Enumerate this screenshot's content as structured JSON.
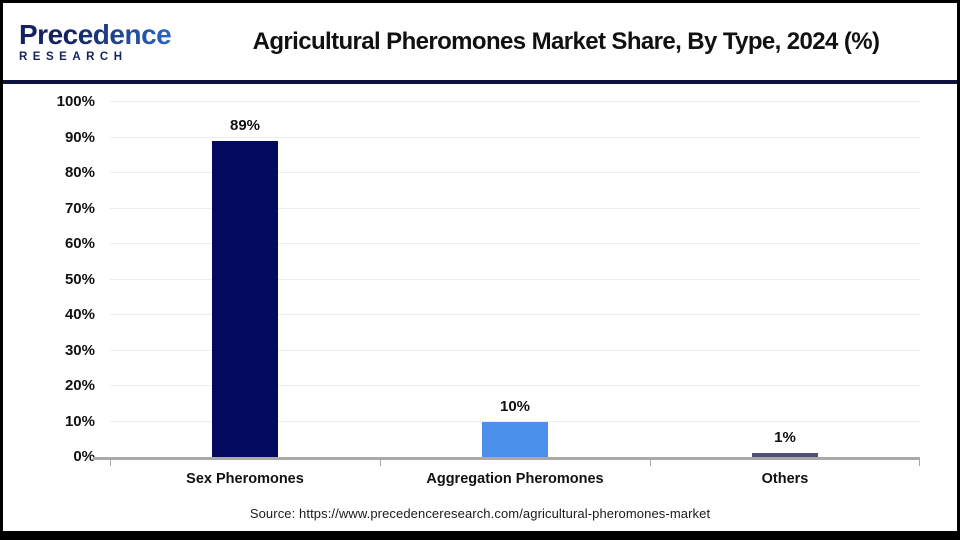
{
  "header": {
    "logo": {
      "name": "Precedence",
      "subname": "RESEARCH"
    },
    "title": "Agricultural Pheromones Market Share, By Type, 2024 (%)"
  },
  "chart_data": {
    "type": "bar",
    "title": "Agricultural Pheromones Market Share, By Type, 2024 (%)",
    "categories": [
      "Sex Pheromones",
      "Aggregation Pheromones",
      "Others"
    ],
    "values": [
      89,
      10,
      1
    ],
    "value_labels": [
      "89%",
      "10%",
      "1%"
    ],
    "bar_colors": [
      "#030a60",
      "#4b90ea",
      "#4f4f78"
    ],
    "ylim": [
      0,
      100
    ],
    "ytick_labels": [
      "0%",
      "10%",
      "20%",
      "30%",
      "40%",
      "50%",
      "60%",
      "70%",
      "80%",
      "90%",
      "100%"
    ],
    "xlabel": "",
    "ylabel": "",
    "grid": true,
    "legend": false
  },
  "footer": {
    "source": "Source: https://www.precedenceresearch.com/agricultural-pheromones-market"
  },
  "colors": {
    "divider_navy": "#0d1240",
    "axis_gray": "#a9a9a9",
    "grid_gray": "#ededed",
    "logo_navy": "#14235f",
    "logo_blue": "#2e6fd0"
  }
}
